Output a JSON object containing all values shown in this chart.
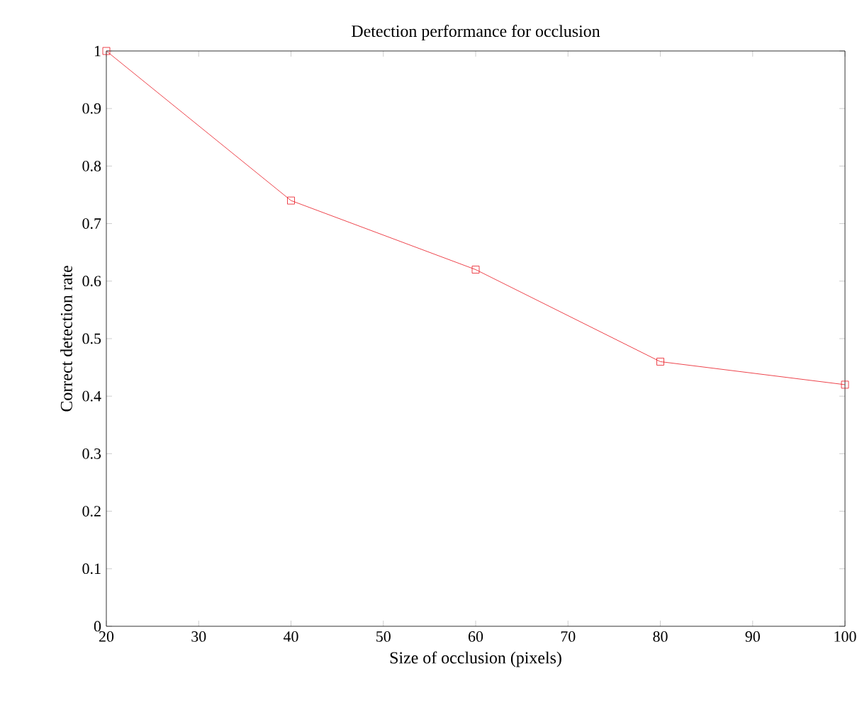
{
  "chart_data": {
    "type": "line",
    "title": "Detection performance for occlusion",
    "xlabel": "Size of occlusion (pixels)",
    "ylabel": "Correct detection rate",
    "x": [
      20,
      40,
      60,
      80,
      100
    ],
    "series": [
      {
        "color": "#e8141e",
        "values": [
          1.0,
          0.74,
          0.62,
          0.46,
          0.42
        ]
      }
    ],
    "xlim": [
      20,
      100
    ],
    "ylim": [
      0,
      1
    ],
    "xticks": [
      20,
      30,
      40,
      50,
      60,
      70,
      80,
      90,
      100
    ],
    "yticks": [
      0,
      0.1,
      0.2,
      0.3,
      0.4,
      0.5,
      0.6,
      0.7,
      0.8,
      0.9,
      1
    ],
    "marker": "square",
    "line_style": "solid"
  }
}
